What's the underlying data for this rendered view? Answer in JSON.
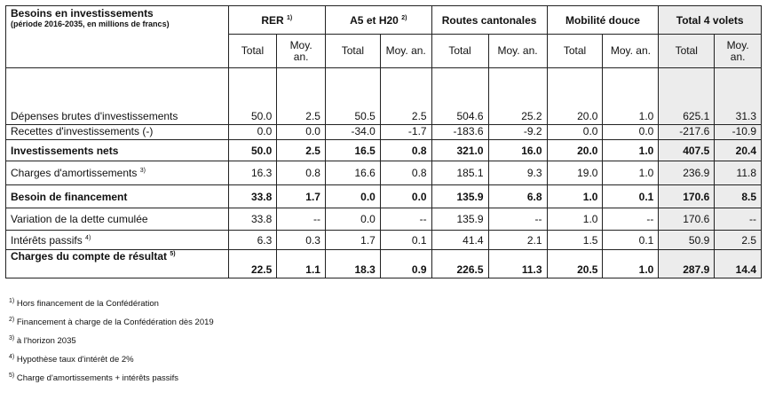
{
  "header": {
    "title": "Besoins en investissements",
    "subtitle": "(période 2016-2035, en millions de francs)",
    "groups": [
      {
        "label": "RER",
        "note": "1)"
      },
      {
        "label": "A5 et H20",
        "note": "2)"
      },
      {
        "label": "Routes cantonales",
        "note": ""
      },
      {
        "label": "Mobilité douce",
        "note": ""
      },
      {
        "label": "Total 4 volets",
        "note": ""
      }
    ],
    "col_total": "Total",
    "col_moy": "Moy. an."
  },
  "rows": [
    {
      "label": "Dépenses brutes d'investissements",
      "note": "",
      "values": [
        "50.0",
        "2.5",
        "50.5",
        "2.5",
        "504.6",
        "25.2",
        "20.0",
        "1.0",
        "625.1",
        "31.3"
      ]
    },
    {
      "label": "Recettes d'investissements (-)",
      "note": "",
      "values": [
        "0.0",
        "0.0",
        "-34.0",
        "-1.7",
        "-183.6",
        "-9.2",
        "0.0",
        "0.0",
        "-217.6",
        "-10.9"
      ]
    },
    {
      "label": "Investissements nets",
      "note": "",
      "values": [
        "50.0",
        "2.5",
        "16.5",
        "0.8",
        "321.0",
        "16.0",
        "20.0",
        "1.0",
        "407.5",
        "20.4"
      ]
    },
    {
      "label": "Charges d'amortissements",
      "note": "3)",
      "values": [
        "16.3",
        "0.8",
        "16.6",
        "0.8",
        "185.1",
        "9.3",
        "19.0",
        "1.0",
        "236.9",
        "11.8"
      ]
    },
    {
      "label": "Besoin de financement",
      "note": "",
      "values": [
        "33.8",
        "1.7",
        "0.0",
        "0.0",
        "135.9",
        "6.8",
        "1.0",
        "0.1",
        "170.6",
        "8.5"
      ]
    },
    {
      "label": "Variation de la dette cumulée",
      "note": "",
      "values": [
        "33.8",
        "--",
        "0.0",
        "--",
        "135.9",
        "--",
        "1.0",
        "--",
        "170.6",
        "--"
      ]
    },
    {
      "label": "Intérêts passifs",
      "note": "4)",
      "values": [
        "6.3",
        "0.3",
        "1.7",
        "0.1",
        "41.4",
        "2.1",
        "1.5",
        "0.1",
        "50.9",
        "2.5"
      ]
    },
    {
      "label": "Charges du compte de résultat",
      "note": "5)",
      "values": [
        "22.5",
        "1.1",
        "18.3",
        "0.9",
        "226.5",
        "11.3",
        "20.5",
        "1.0",
        "287.9",
        "14.4"
      ]
    }
  ],
  "notes": [
    {
      "mark": "1)",
      "text": "Hors financement de la Confédération"
    },
    {
      "mark": "2)",
      "text": "Financement à charge de la Confédération dès 2019"
    },
    {
      "mark": "3)",
      "text": "à l'horizon 2035"
    },
    {
      "mark": "4)",
      "text": "Hypothèse taux d'intérêt de 2%"
    },
    {
      "mark": "5)",
      "text": "Charge d'amortissements + intérêts passifs"
    }
  ]
}
